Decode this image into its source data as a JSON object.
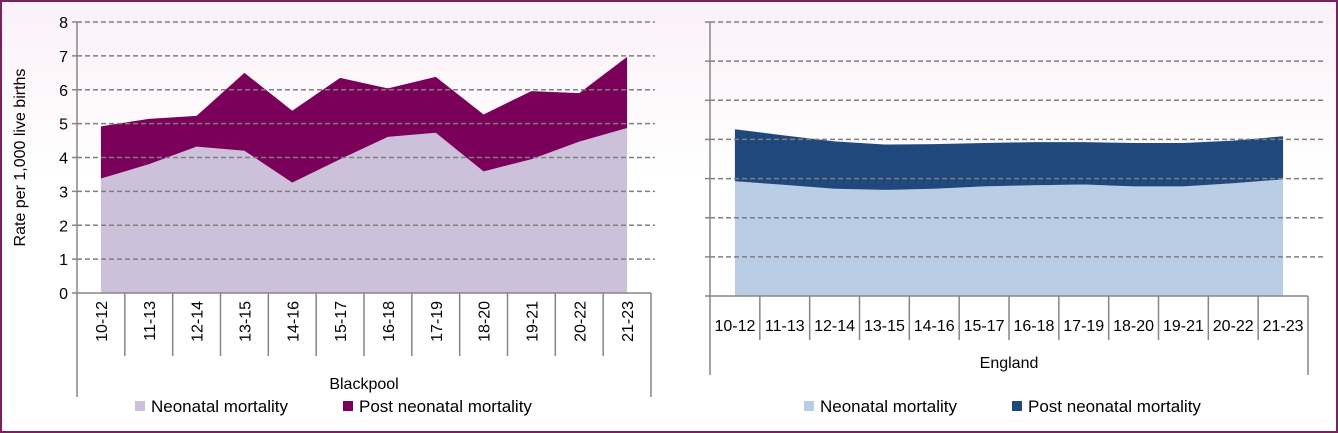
{
  "chart_data": [
    {
      "type": "area",
      "stacked": true,
      "title": "",
      "xlabel": "Blackpool",
      "ylabel": "Rate per 1,000 live births",
      "ylim": [
        0,
        8
      ],
      "yticks": [
        "0",
        "1",
        "2",
        "3",
        "4",
        "5",
        "6",
        "7",
        "8"
      ],
      "grid": true,
      "legend_position": "bottom",
      "categories": [
        "10-12",
        "11-13",
        "12-14",
        "13-15",
        "14-16",
        "15-17",
        "16-18",
        "17-19",
        "18-20",
        "19-21",
        "20-22",
        "21-23"
      ],
      "series": [
        {
          "name": "Neonatal mortality",
          "color": "#ccc0da",
          "values": [
            3.38,
            3.8,
            4.32,
            4.2,
            3.26,
            3.95,
            4.61,
            4.73,
            3.59,
            3.95,
            4.47,
            4.87
          ]
        },
        {
          "name": "Post neonatal mortality",
          "color": "#7b005a",
          "values": [
            1.54,
            1.34,
            0.91,
            2.3,
            2.12,
            2.4,
            1.43,
            1.65,
            1.68,
            2.01,
            1.43,
            2.1
          ]
        }
      ]
    },
    {
      "type": "area",
      "stacked": true,
      "title": "",
      "xlabel": "England",
      "ylabel": "",
      "ylim": [
        0,
        7
      ],
      "grid": true,
      "legend_position": "bottom",
      "categories": [
        "10-12",
        "11-13",
        "12-14",
        "13-15",
        "14-16",
        "15-17",
        "16-18",
        "17-19",
        "18-20",
        "19-21",
        "20-22",
        "21-23"
      ],
      "series": [
        {
          "name": "Neonatal mortality",
          "color": "#b9cde5",
          "values": [
            2.93,
            2.84,
            2.74,
            2.71,
            2.74,
            2.8,
            2.83,
            2.85,
            2.8,
            2.8,
            2.88,
            2.98
          ]
        },
        {
          "name": "Post neonatal mortality",
          "color": "#1f497d",
          "values": [
            1.33,
            1.26,
            1.21,
            1.16,
            1.14,
            1.11,
            1.1,
            1.08,
            1.11,
            1.11,
            1.09,
            1.1
          ]
        }
      ]
    }
  ]
}
